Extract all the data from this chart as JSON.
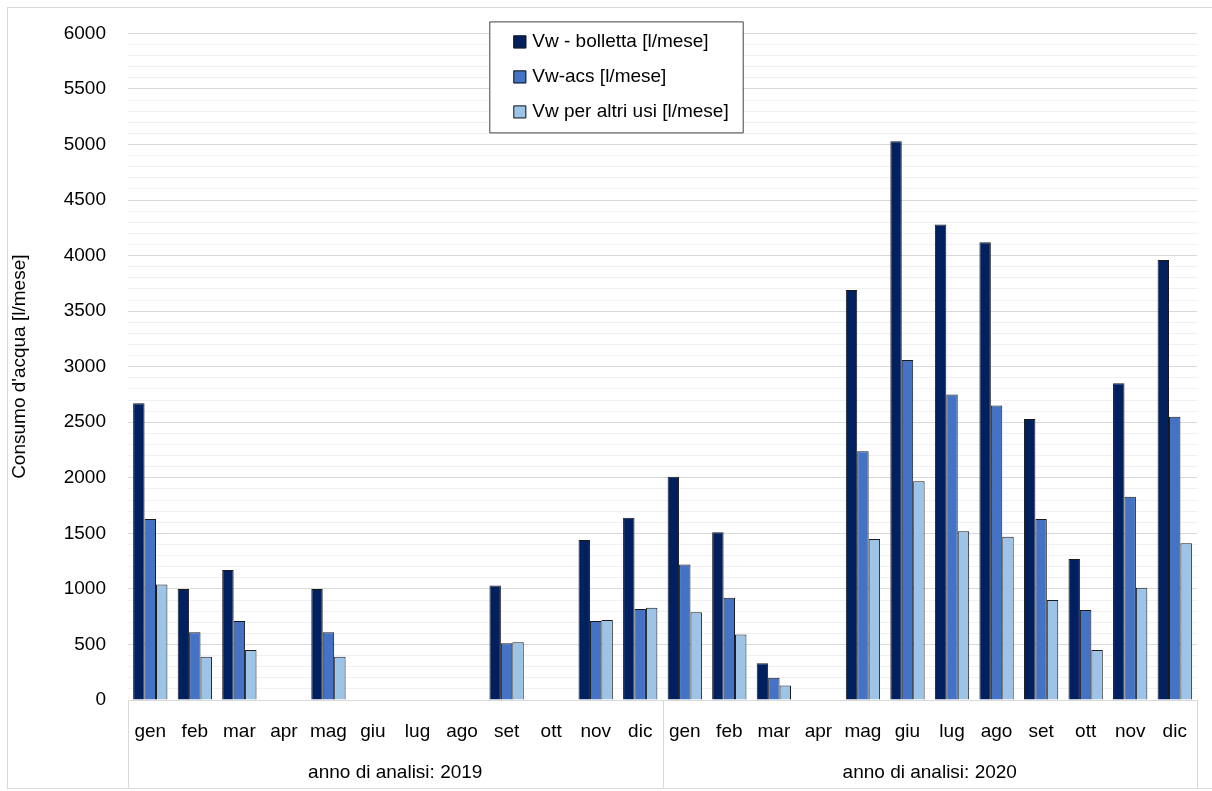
{
  "chart_data": {
    "type": "bar",
    "ylabel": "Consumo d'acqua [l/mese]",
    "categories": [
      "gen",
      "feb",
      "mar",
      "apr",
      "mag",
      "giu",
      "lug",
      "ago",
      "set",
      "ott",
      "nov",
      "dic",
      "gen",
      "feb",
      "mar",
      "apr",
      "mag",
      "giu",
      "lug",
      "ago",
      "set",
      "ott",
      "nov",
      "dic"
    ],
    "series": [
      {
        "name": "Vw - bolletta [l/mese]",
        "color": "#002060",
        "values": [
          2670,
          1000,
          1170,
          null,
          1000,
          null,
          null,
          null,
          1030,
          null,
          1440,
          1640,
          2010,
          1510,
          330,
          null,
          3690,
          5030,
          4280,
          4120,
          2530,
          1270,
          2850,
          3960
        ]
      },
      {
        "name": "Vw-acs [l/mese]",
        "color": "#4472c4",
        "values": [
          1630,
          610,
          710,
          null,
          610,
          null,
          null,
          null,
          510,
          null,
          710,
          820,
          1220,
          920,
          200,
          null,
          2240,
          3060,
          2750,
          2650,
          1630,
          810,
          1830,
          2550
        ]
      },
      {
        "name": "Vw per altri usi [l/mese]",
        "color": "#9dc3e6",
        "values": [
          1040,
          390,
          450,
          null,
          390,
          null,
          null,
          null,
          520,
          null,
          720,
          830,
          790,
          590,
          130,
          null,
          1450,
          1970,
          1520,
          1470,
          900,
          450,
          1010,
          1410
        ]
      }
    ],
    "ylim": [
      0,
      6000
    ],
    "yticks": [
      0,
      {
        "value": 100,
        "label": null
      },
      {
        "value": 200,
        "label": null
      },
      {
        "value": 300,
        "label": null
      },
      {
        "value": 400,
        "label": null
      },
      500,
      {
        "value": 600,
        "label": null
      },
      {
        "value": 700,
        "label": null
      },
      {
        "value": 800,
        "label": null
      },
      {
        "value": 900,
        "label": null
      },
      1000,
      {
        "value": 1100,
        "label": null
      },
      {
        "value": 1200,
        "label": null
      },
      {
        "value": 1300,
        "label": null
      },
      {
        "value": 1400,
        "label": null
      },
      1500,
      {
        "value": 1600,
        "label": null
      },
      {
        "value": 1700,
        "label": null
      },
      {
        "value": 1800,
        "label": null
      },
      {
        "value": 1900,
        "label": null
      },
      2000,
      {
        "value": 2100,
        "label": null
      },
      {
        "value": 2200,
        "label": null
      },
      {
        "value": 2300,
        "label": null
      },
      {
        "value": 2400,
        "label": null
      },
      2500,
      {
        "value": 2600,
        "label": null
      },
      {
        "value": 2700,
        "label": null
      },
      {
        "value": 2800,
        "label": null
      },
      {
        "value": 2900,
        "label": null
      },
      3000,
      {
        "value": 3100,
        "label": null
      },
      {
        "value": 3200,
        "label": null
      },
      {
        "value": 3300,
        "label": null
      },
      {
        "value": 3400,
        "label": null
      },
      3500,
      {
        "value": 3600,
        "label": null
      },
      {
        "value": 3700,
        "label": null
      },
      {
        "value": 3800,
        "label": null
      },
      {
        "value": 3900,
        "label": null
      },
      4000,
      {
        "value": 4100,
        "label": null
      },
      {
        "value": 4200,
        "label": null
      },
      {
        "value": 4300,
        "label": null
      },
      {
        "value": 4400,
        "label": null
      },
      4500,
      {
        "value": 4600,
        "label": null
      },
      {
        "value": 4700,
        "label": null
      },
      {
        "value": 4800,
        "label": null
      },
      {
        "value": 4900,
        "label": null
      },
      5000,
      {
        "value": 5100,
        "label": null
      },
      {
        "value": 5200,
        "label": null
      },
      {
        "value": 5300,
        "label": null
      },
      {
        "value": 5400,
        "label": null
      },
      5500,
      {
        "value": 5600,
        "label": null
      },
      {
        "value": 5700,
        "label": null
      },
      {
        "value": 5800,
        "label": null
      },
      {
        "value": 5900,
        "label": null
      },
      6000
    ],
    "grid": "y",
    "legend": "top",
    "annotations": [
      "anno di analisi: 2019",
      "anno di analisi: 2020"
    ]
  }
}
